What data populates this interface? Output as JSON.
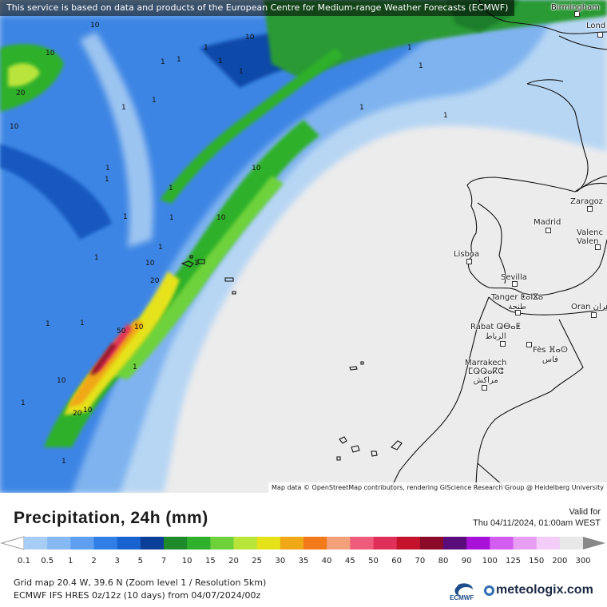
{
  "map": {
    "attribution_top": "This service is based on data and products of the European Centre for Medium-range Weather Forecasts (ECMWF)",
    "attribution_bottom": "Map data © OpenStreetMap contributors, rendering GIScience Research Group @ Heidelberg University",
    "cities": [
      {
        "id": "birmingham",
        "name": "Birmingham"
      },
      {
        "id": "london",
        "name": "Lond"
      },
      {
        "id": "zaragoza",
        "name": "Zaragoz"
      },
      {
        "id": "madrid",
        "name": "Madrid"
      },
      {
        "id": "valencia",
        "name": "Valenc\nValen"
      },
      {
        "id": "lisboa",
        "name": "Lisboa"
      },
      {
        "id": "sevilla",
        "name": "Sevilla"
      },
      {
        "id": "tanger",
        "name": "Tanger ⵟⴰⵏⴵⴰ\nطنجة"
      },
      {
        "id": "oran",
        "name": "Oran وهران"
      },
      {
        "id": "rabat",
        "name": "Rabat ⵕⴱⴰⵟ\nالرباط"
      },
      {
        "id": "fes",
        "name": "Fès ⴼⴰⵙ\nفاس"
      },
      {
        "id": "marrakech",
        "name": "Marrakech\nⵎⵕⵕⴰⴽⵛ\nمراكش"
      }
    ],
    "contour_labels": [
      "10",
      "10",
      "10",
      "20",
      "1",
      "1",
      "1",
      "1",
      "1",
      "10",
      "1",
      "1",
      "1",
      "1",
      "1",
      "1",
      "1",
      "10",
      "1",
      "10",
      "1",
      "1",
      "20",
      "1",
      "10",
      "1",
      "50",
      "10",
      "1",
      "10",
      "20",
      "10",
      "1",
      "1",
      "1",
      "1",
      "1",
      "1"
    ]
  },
  "panel": {
    "title": "Precipitation, 24h (mm)",
    "valid_label": "Valid for",
    "valid_time": "Thu 04/11/2024, 01:00am WEST",
    "info_line1": "Grid map 20.4 W, 39.6 N (Zoom level 1 / Resolution 5km)",
    "info_line2": "ECMWF IFS HRES 0z/12z (10 days) from  04/07/2024/00z",
    "ecmwf_label": "ECMWF",
    "brand": "meteologix.com"
  },
  "legend": {
    "ticks": [
      "0.1",
      "0.5",
      "1",
      "2",
      "3",
      "5",
      "7",
      "10",
      "15",
      "20",
      "25",
      "30",
      "35",
      "40",
      "45",
      "50",
      "60",
      "70",
      "80",
      "90",
      "100",
      "125",
      "150",
      "200",
      "300"
    ],
    "colors": [
      "#a8cdf5",
      "#86b8f3",
      "#5e9ff0",
      "#2f7fe6",
      "#1863cf",
      "#0c3f9a",
      "#1f8a2a",
      "#2fb02c",
      "#6dd23a",
      "#b9e43a",
      "#e6e21a",
      "#f0a816",
      "#f27a1a",
      "#f2a07a",
      "#ef5b7a",
      "#e0305a",
      "#c5132d",
      "#8a0a28",
      "#5a0d7a",
      "#a812d8",
      "#d35df0",
      "#e89ef2",
      "#f3cdf8",
      "#e8e8e8"
    ]
  }
}
